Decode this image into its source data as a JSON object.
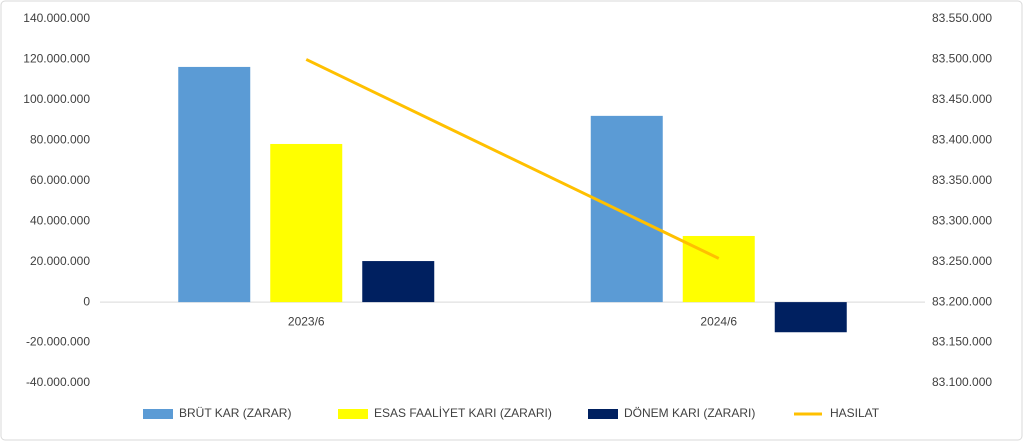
{
  "chart_data": {
    "type": "bar-line",
    "categories": [
      "2023/6",
      "2024/6"
    ],
    "series": [
      {
        "name": "BRÜT KAR (ZARAR)",
        "type": "bar",
        "color": "#5b9bd5",
        "values": [
          116300000,
          92100000
        ]
      },
      {
        "name": "ESAS FAALİYET KARI (ZARARI)",
        "type": "bar",
        "color": "#ffff00",
        "values": [
          78200000,
          32700000
        ]
      },
      {
        "name": "DÖNEM KARI (ZARARI)",
        "type": "bar",
        "color": "#002060",
        "values": [
          20300000,
          -14900000
        ]
      },
      {
        "name": "HASILAT",
        "type": "line",
        "color": "#ffc000",
        "axis": "y2",
        "values": [
          83500000,
          83254000
        ]
      }
    ],
    "ylim": [
      -40000000,
      140000000
    ],
    "yticks": [
      {
        "value": -40000000,
        "label": "-40.000.000"
      },
      {
        "value": -20000000,
        "label": "-20.000.000"
      },
      0,
      {
        "value": 20000000,
        "label": "20.000.000"
      },
      {
        "value": 40000000,
        "label": "40.000.000"
      },
      {
        "value": 60000000,
        "label": "60.000.000"
      },
      {
        "value": 80000000,
        "label": "80.000.000"
      },
      {
        "value": 100000000,
        "label": "100.000.000"
      },
      {
        "value": 120000000,
        "label": "120.000.000"
      },
      {
        "value": 140000000,
        "label": "140.000.000"
      }
    ],
    "y2lim": [
      83100000,
      83550000
    ],
    "y2ticks": [
      {
        "value": 83100000,
        "label": "83.100.000"
      },
      {
        "value": 83150000,
        "label": "83.150.000"
      },
      {
        "value": 83200000,
        "label": "83.200.000"
      },
      {
        "value": 83250000,
        "label": "83.250.000"
      },
      {
        "value": 83300000,
        "label": "83.300.000"
      },
      {
        "value": 83350000,
        "label": "83.350.000"
      },
      {
        "value": 83400000,
        "label": "83.400.000"
      },
      {
        "value": 83450000,
        "label": "83.450.000"
      },
      {
        "value": 83500000,
        "label": "83.500.000"
      },
      {
        "value": 83550000,
        "label": "83.550.000"
      }
    ],
    "grid": false,
    "legend": "bottom"
  }
}
